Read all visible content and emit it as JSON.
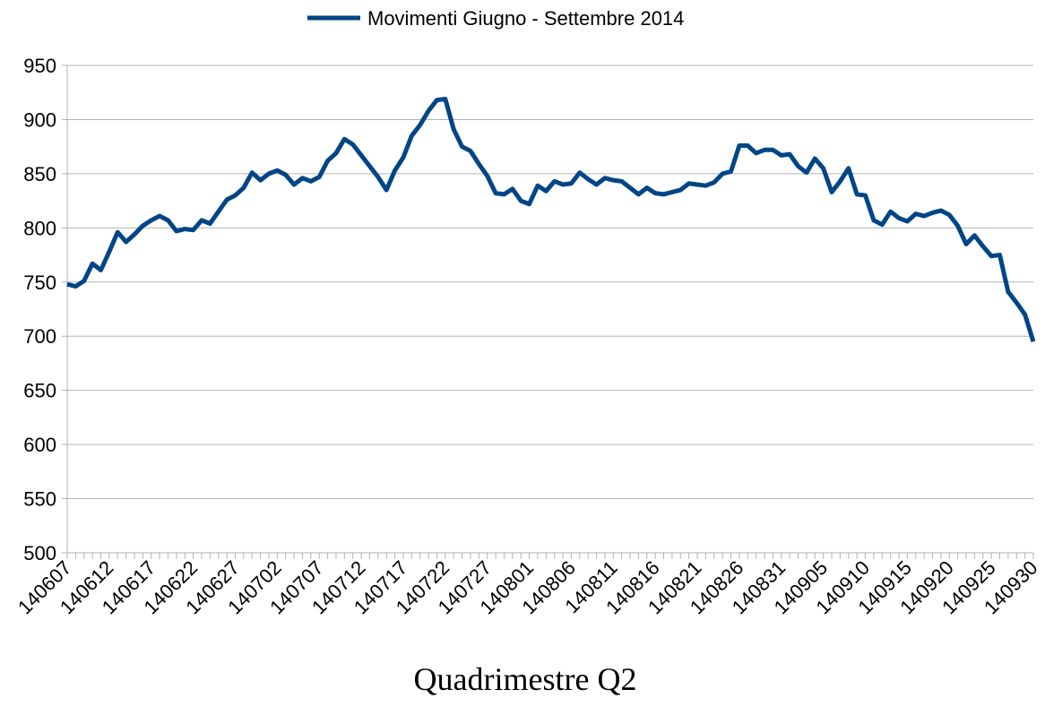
{
  "chart_data": {
    "type": "line",
    "x_label": "Quadrimestre Q2",
    "categories": [
      "140607",
      null,
      null,
      null,
      null,
      "140612",
      null,
      null,
      null,
      null,
      "140617",
      null,
      null,
      null,
      null,
      "140622",
      null,
      null,
      null,
      null,
      "140627",
      null,
      null,
      null,
      null,
      "140702",
      null,
      null,
      null,
      null,
      "140707",
      null,
      null,
      null,
      null,
      "140712",
      null,
      null,
      null,
      null,
      "140717",
      null,
      null,
      null,
      null,
      "140722",
      null,
      null,
      null,
      null,
      "140727",
      null,
      null,
      null,
      null,
      "140801",
      null,
      null,
      null,
      null,
      "140806",
      null,
      null,
      null,
      null,
      "140811",
      null,
      null,
      null,
      null,
      "140816",
      null,
      null,
      null,
      null,
      "140821",
      null,
      null,
      null,
      null,
      "140826",
      null,
      null,
      null,
      null,
      "140831",
      null,
      null,
      null,
      null,
      "140905",
      null,
      null,
      null,
      null,
      "140910",
      null,
      null,
      null,
      null,
      "140915",
      null,
      null,
      null,
      null,
      "140920",
      null,
      null,
      null,
      null,
      "140925",
      null,
      null,
      null,
      null,
      "140930"
    ],
    "series": [
      {
        "name": "Movimenti Giugno - Settembre 2014",
        "color": "#004586",
        "values": [
          748,
          746,
          751,
          767,
          761,
          778,
          796,
          787,
          794,
          802,
          807,
          811,
          807,
          797,
          799,
          798,
          807,
          804,
          815,
          826,
          830,
          837,
          851,
          844,
          850,
          853,
          849,
          840,
          846,
          843,
          847,
          862,
          869,
          882,
          877,
          867,
          857,
          847,
          835,
          853,
          865,
          885,
          895,
          908,
          918,
          919,
          891,
          875,
          871,
          859,
          848,
          832,
          831,
          836,
          825,
          822,
          839,
          834,
          843,
          840,
          841,
          851,
          845,
          840,
          846,
          844,
          843,
          837,
          831,
          837,
          832,
          831,
          833,
          835,
          841,
          840,
          839,
          842,
          850,
          852,
          876,
          876,
          869,
          872,
          872,
          867,
          868,
          857,
          851,
          864,
          855,
          833,
          843,
          855,
          831,
          830,
          807,
          803,
          815,
          809,
          806,
          813,
          811,
          814,
          816,
          812,
          802,
          785,
          793,
          783,
          774,
          775,
          741,
          731,
          720,
          695
        ]
      }
    ],
    "ylim": [
      500,
      950
    ],
    "yticks": [
      500,
      550,
      600,
      650,
      700,
      750,
      800,
      850,
      900,
      950
    ],
    "grid": true,
    "legend": "top"
  }
}
